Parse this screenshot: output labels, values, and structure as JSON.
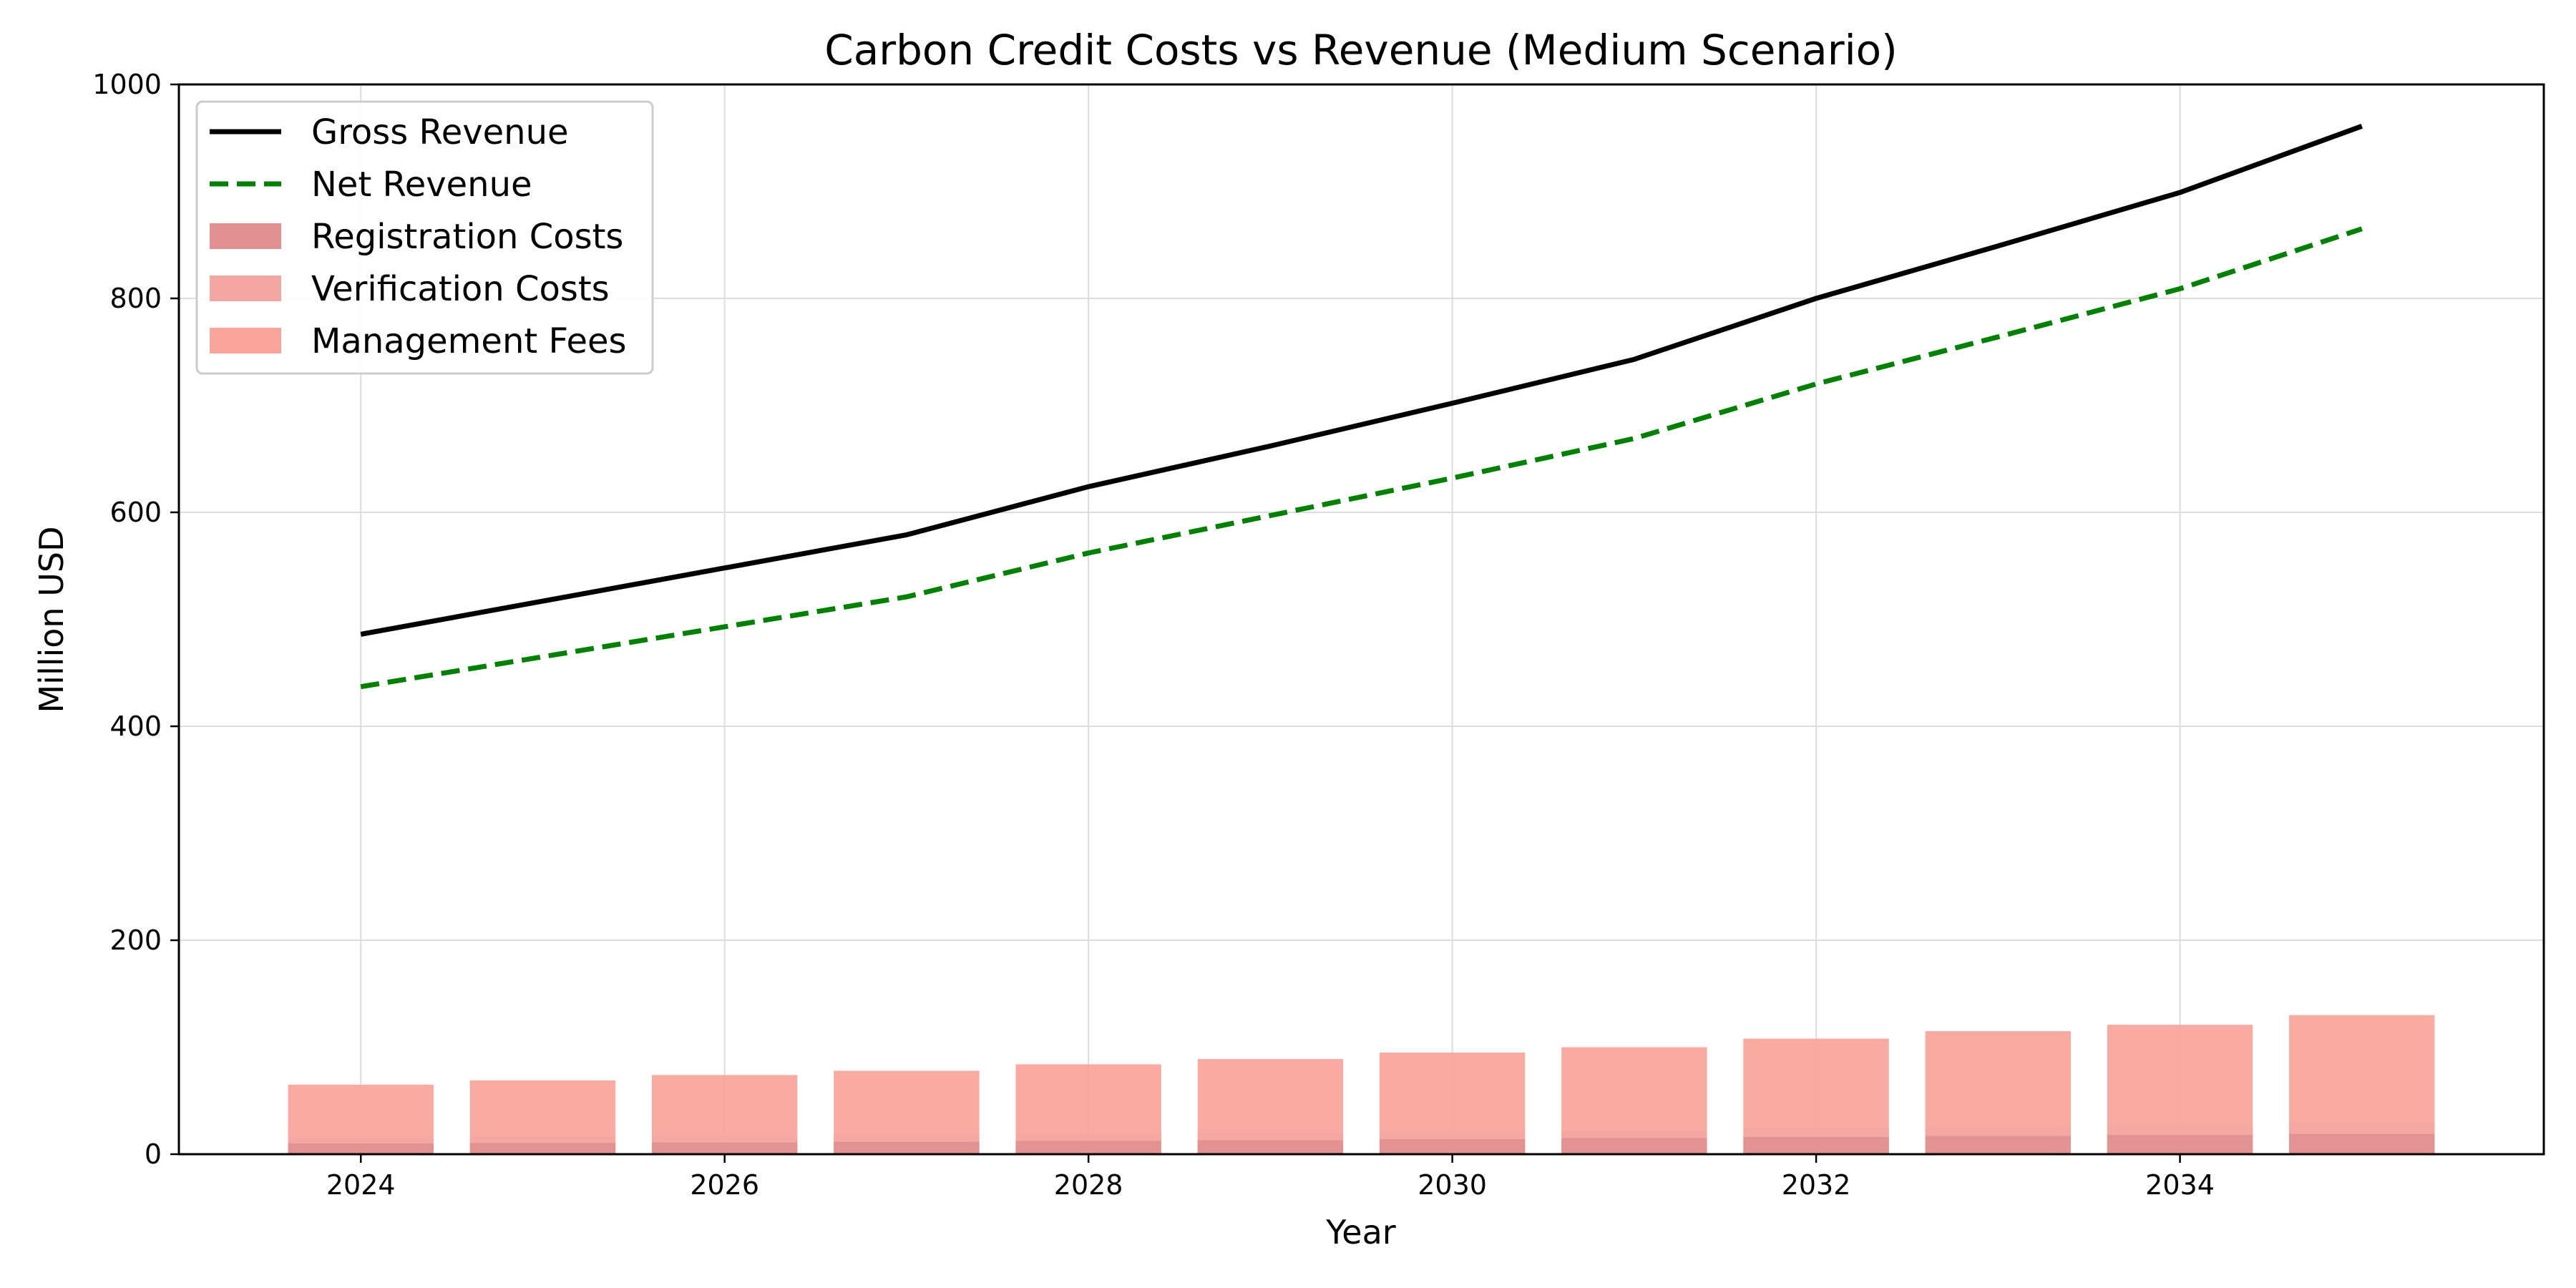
{
  "chart_data": {
    "type": "bar",
    "title": "Carbon Credit Costs vs Revenue (Medium Scenario)",
    "xlabel": "Year",
    "ylabel": "Million USD",
    "xlim": [
      2023,
      2036
    ],
    "ylim": [
      0,
      1000
    ],
    "x_ticks": [
      2024,
      2026,
      2028,
      2030,
      2032,
      2034
    ],
    "y_ticks": [
      0,
      200,
      400,
      600,
      800,
      1000
    ],
    "grid": true,
    "legend_position": "top-left",
    "x": [
      2024,
      2025,
      2026,
      2027,
      2028,
      2029,
      2030,
      2031,
      2032,
      2033,
      2034,
      2035
    ],
    "series": [
      {
        "name": "Gross Revenue",
        "kind": "line",
        "style": "solid",
        "color": "#000000",
        "values": [
          486,
          517,
          548,
          579,
          624,
          662,
          702,
          743,
          800,
          849,
          899,
          961
        ]
      },
      {
        "name": "Net Revenue",
        "kind": "line",
        "style": "dashed",
        "color": "#008000",
        "values": [
          437,
          465,
          493,
          521,
          562,
          597,
          632,
          669,
          720,
          764,
          809,
          865
        ]
      },
      {
        "name": "Registration Costs",
        "kind": "bar",
        "color": "#e09090",
        "values": [
          10,
          10.5,
          11,
          11.5,
          12.5,
          13,
          14,
          15,
          16,
          17,
          18,
          19
        ]
      },
      {
        "name": "Verification Costs",
        "kind": "bar",
        "color": "#f4a6a2",
        "values": [
          15,
          16,
          17,
          18,
          19,
          20,
          21,
          22,
          24,
          26,
          28,
          30
        ]
      },
      {
        "name": "Management Fees",
        "kind": "bar",
        "color": "#f9a59c",
        "values": [
          65,
          69,
          74,
          78,
          84,
          89,
          95,
          100,
          108,
          115,
          121,
          130
        ]
      }
    ]
  }
}
